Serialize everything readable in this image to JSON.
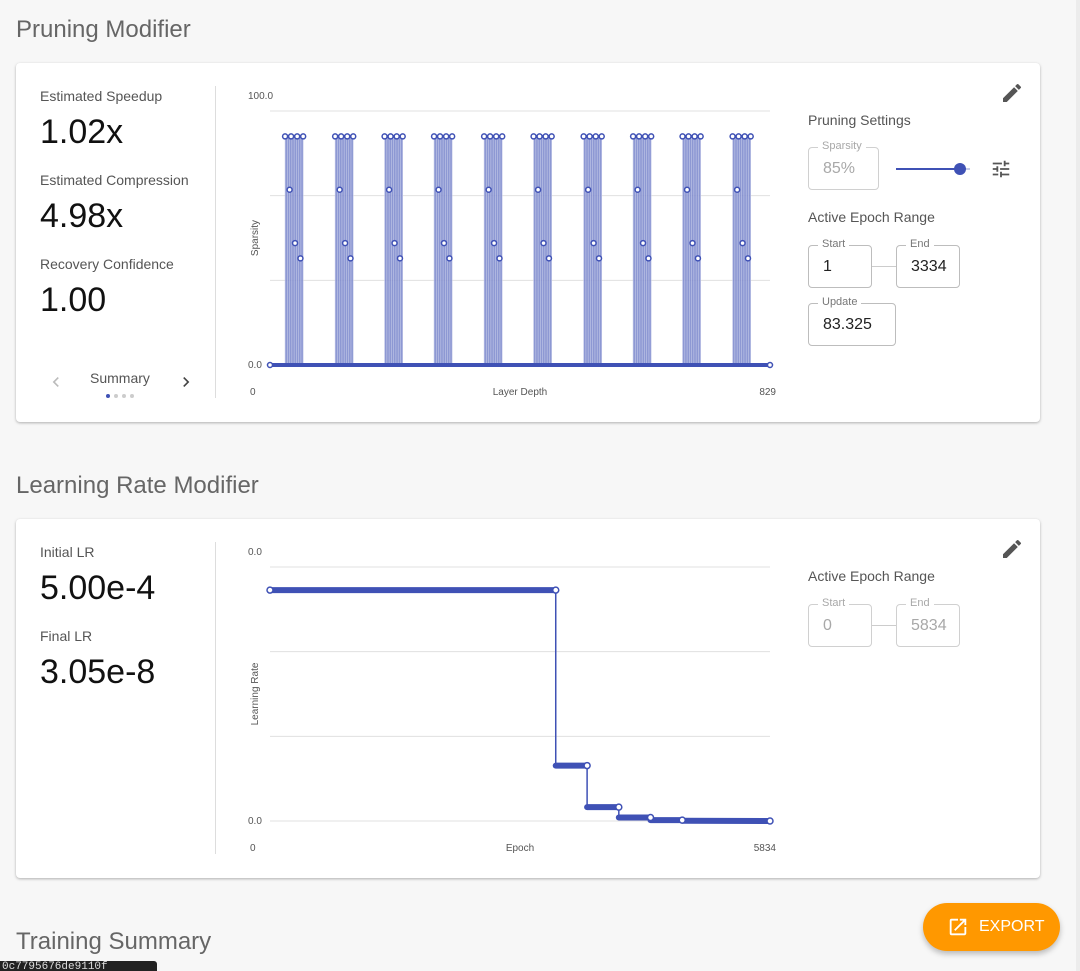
{
  "pruning": {
    "section_title": "Pruning Modifier",
    "metrics": [
      {
        "label": "Estimated Speedup",
        "value": "1.02x"
      },
      {
        "label": "Estimated Compression",
        "value": "4.98x"
      },
      {
        "label": "Recovery Confidence",
        "value": "1.00"
      }
    ],
    "carousel": {
      "label": "Summary",
      "page": 1,
      "pages": 4
    },
    "settings_title": "Pruning Settings",
    "sparsity_label": "Sparsity",
    "sparsity_value": "85%",
    "slider_value": 0.85,
    "epoch_range_title": "Active Epoch Range",
    "start_label": "Start",
    "start_value": "1",
    "end_label": "End",
    "end_value": "3334",
    "update_label": "Update",
    "update_value": "83.325"
  },
  "lr": {
    "section_title": "Learning Rate Modifier",
    "metrics": [
      {
        "label": "Initial LR",
        "value": "5.00e-4"
      },
      {
        "label": "Final LR",
        "value": "3.05e-8"
      }
    ],
    "epoch_range_title": "Active Epoch Range",
    "start_label": "Start",
    "start_value": "0",
    "end_label": "End",
    "end_value": "5834"
  },
  "training_summary_title": "Training Summary",
  "export_label": "EXPORT",
  "tooltip_text": "0c7795676de9110f",
  "colors": {
    "accent": "#3f51b5",
    "chart_fill": "#7986cb",
    "export": "#ff9800"
  },
  "chart_data": [
    {
      "type": "line",
      "title": "",
      "xlabel": "Layer Depth",
      "ylabel": "Sparsity",
      "xlim": [
        0,
        829
      ],
      "ylim": [
        0,
        100
      ],
      "x_tick_labels": [
        "0",
        "829"
      ],
      "y_tick_labels": [
        "0.0",
        "100.0"
      ],
      "grid": true,
      "series": [
        {
          "peaks": [
            {
              "x": [
                25,
                55
              ],
              "y": 90
            },
            {
              "x": [
                108,
                138
              ],
              "y": 90
            },
            {
              "x": [
                190,
                220
              ],
              "y": 90
            },
            {
              "x": [
                272,
                302
              ],
              "y": 90
            },
            {
              "x": [
                355,
                385
              ],
              "y": 90
            },
            {
              "x": [
                437,
                467
              ],
              "y": 90
            },
            {
              "x": [
                520,
                550
              ],
              "y": 90
            },
            {
              "x": [
                602,
                632
              ],
              "y": 90
            },
            {
              "x": [
                684,
                714
              ],
              "y": 90
            },
            {
              "x": [
                767,
                797
              ],
              "y": 90
            }
          ],
          "secondary_levels": [
            69,
            48,
            42
          ],
          "baseline": 0
        }
      ]
    },
    {
      "type": "line",
      "title": "",
      "xlabel": "Epoch",
      "ylabel": "Learning Rate",
      "xlim": [
        0,
        5834
      ],
      "ylim": [
        0,
        0.00055
      ],
      "x_tick_labels": [
        "0",
        "5834"
      ],
      "y_tick_labels": [
        "0.0",
        "0.0"
      ],
      "grid": true,
      "series": [
        {
          "x": [
            0,
            3334,
            3334,
            3700,
            3700,
            4070,
            4070,
            4440,
            4440,
            4810,
            4810,
            5834
          ],
          "y": [
            0.0005,
            0.0005,
            0.00012,
            0.00012,
            3e-05,
            3e-05,
            7.5e-06,
            7.5e-06,
            1.9e-06,
            1.9e-06,
            5e-07,
            3e-08
          ]
        }
      ]
    }
  ]
}
